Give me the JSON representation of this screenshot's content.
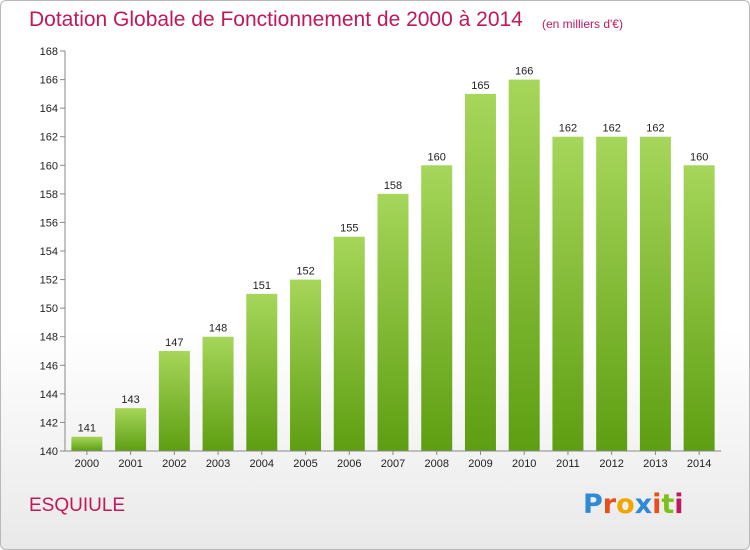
{
  "header": {
    "title": "Dotation Globale de Fonctionnement de 2000 à 2014",
    "unit": "(en milliers d'€)"
  },
  "footer": {
    "commune": "ESQUIULE",
    "logo_letters": [
      "P",
      "r",
      "o",
      "x",
      "i",
      "t",
      "i"
    ],
    "logo_colors": [
      "#2e8ad8",
      "#e8501b",
      "#f0a500",
      "#2e8ad8",
      "#e8501b",
      "#7cc11a",
      "#c0185a"
    ]
  },
  "chart_data": {
    "type": "bar",
    "categories": [
      "2000",
      "2001",
      "2002",
      "2003",
      "2004",
      "2005",
      "2006",
      "2007",
      "2008",
      "2009",
      "2010",
      "2011",
      "2012",
      "2013",
      "2014"
    ],
    "values": [
      141,
      143,
      147,
      148,
      151,
      152,
      155,
      158,
      160,
      165,
      166,
      162,
      162,
      162,
      160
    ],
    "title": "Dotation Globale de Fonctionnement de 2000 à 2014",
    "ylim": [
      140,
      168
    ],
    "yticks": [
      140,
      142,
      144,
      146,
      148,
      150,
      152,
      154,
      156,
      158,
      160,
      162,
      164,
      166,
      168
    ],
    "grid": false,
    "bar_color_top": "#a6d65a",
    "bar_color_bottom": "#5e9e12"
  }
}
